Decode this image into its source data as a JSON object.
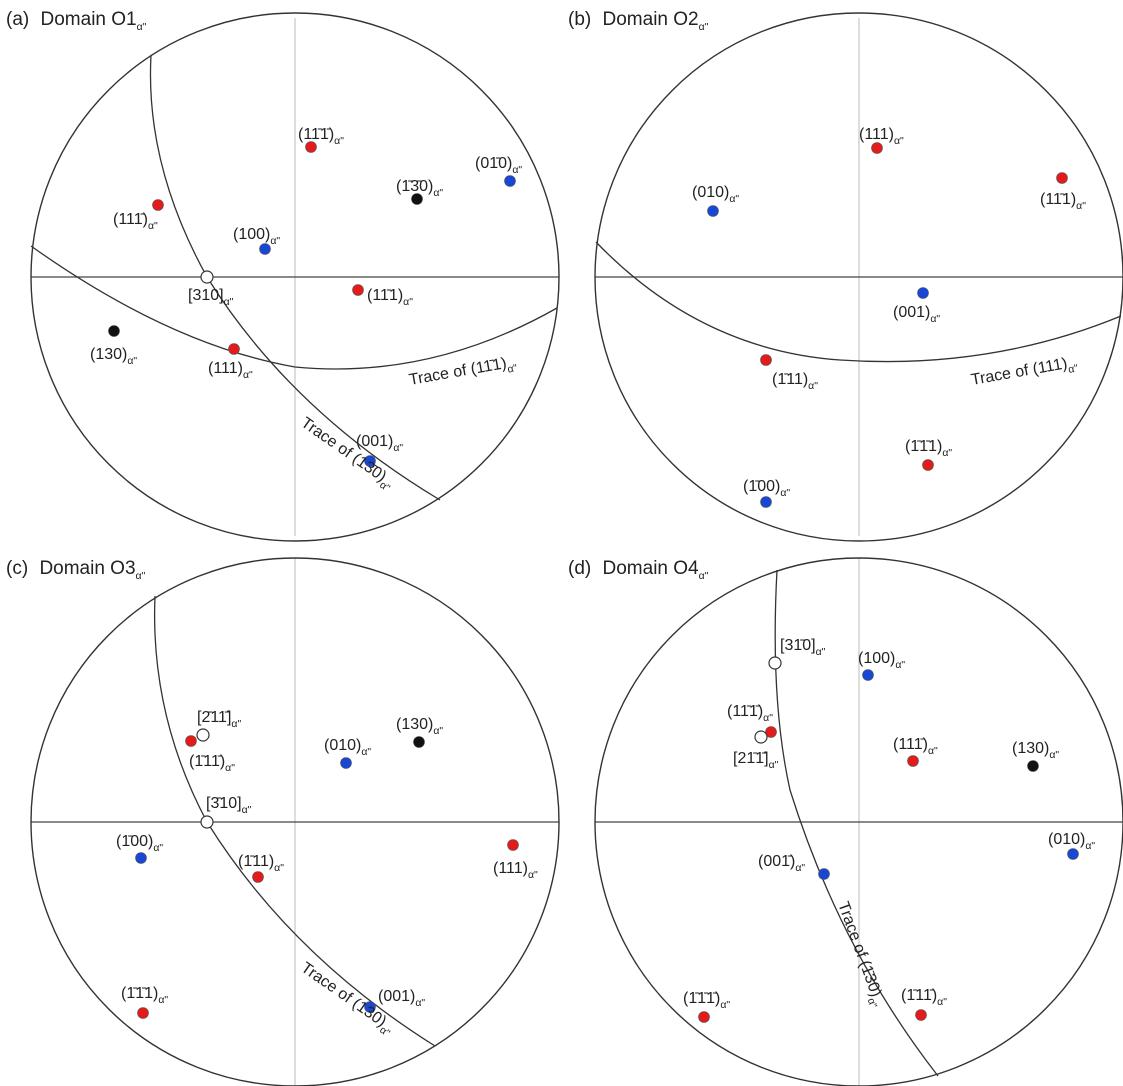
{
  "colors": {
    "red": "#e31b1b",
    "blue": "#1747d4",
    "black": "#111111",
    "open": "#ffffff",
    "circle": "#333333",
    "axis": "#bbbbbb",
    "line": "#333333"
  },
  "subscript": "α\"",
  "panels": [
    {
      "id": "a",
      "title": {
        "tag": "(a)",
        "text": "Domain O1"
      },
      "points": [
        {
          "hkl": "(11̄1̄)",
          "color": "red"
        },
        {
          "hkl": "(1̄3̄0)",
          "color": "black"
        },
        {
          "hkl": "(01̄0)",
          "color": "blue"
        },
        {
          "hkl": "(111̄)",
          "color": "red"
        },
        {
          "hkl": "(100)",
          "color": "blue"
        },
        {
          "hkl": "[310]",
          "color": "open"
        },
        {
          "hkl": "(11̄1)",
          "color": "red"
        },
        {
          "hkl": "(130)",
          "color": "black"
        },
        {
          "hkl": "(111)",
          "color": "red"
        },
        {
          "hkl": "(001)",
          "color": "blue"
        }
      ],
      "traces": [
        {
          "text": "Trace of (11̄1)"
        },
        {
          "text": "Trace of (13̄0)"
        }
      ]
    },
    {
      "id": "b",
      "title": {
        "tag": "(b)",
        "text": "Domain O2"
      },
      "points": [
        {
          "hkl": "(111)",
          "color": "red"
        },
        {
          "hkl": "(11̄1)",
          "color": "red"
        },
        {
          "hkl": "(010)",
          "color": "blue"
        },
        {
          "hkl": "(001)",
          "color": "blue"
        },
        {
          "hkl": "(1̄11)",
          "color": "red"
        },
        {
          "hkl": "(1̄1̄1)",
          "color": "red"
        },
        {
          "hkl": "(1̄00)",
          "color": "blue"
        }
      ],
      "traces": [
        {
          "text": "Trace of (111)"
        }
      ]
    },
    {
      "id": "c",
      "title": {
        "tag": "(c)",
        "text": "Domain O3"
      },
      "points": [
        {
          "hkl": "[2̄11̄]",
          "color": "open"
        },
        {
          "hkl": "(1̄11̄)",
          "color": "red"
        },
        {
          "hkl": "(010)",
          "color": "blue"
        },
        {
          "hkl": "(130)",
          "color": "black"
        },
        {
          "hkl": "[3̄10]",
          "color": "open"
        },
        {
          "hkl": "(1̄00)",
          "color": "blue"
        },
        {
          "hkl": "(1̄11)",
          "color": "red"
        },
        {
          "hkl": "(111)",
          "color": "red"
        },
        {
          "hkl": "(1̄1̄1)",
          "color": "red"
        },
        {
          "hkl": "(001)",
          "color": "blue"
        }
      ],
      "traces": [
        {
          "text": "Trace of (130)"
        }
      ]
    },
    {
      "id": "d",
      "title": {
        "tag": "(d)",
        "text": "Domain O4"
      },
      "points": [
        {
          "hkl": "[31̄0]",
          "color": "open"
        },
        {
          "hkl": "(100)",
          "color": "blue"
        },
        {
          "hkl": "(11̄1̄)",
          "color": "red"
        },
        {
          "hkl": "[21̄1̄]",
          "color": "open"
        },
        {
          "hkl": "(111̄)",
          "color": "red"
        },
        {
          "hkl": "(130)",
          "color": "black"
        },
        {
          "hkl": "(010)",
          "color": "blue"
        },
        {
          "hkl": "(001̄)",
          "color": "blue"
        },
        {
          "hkl": "(1̄1̄1̄)",
          "color": "red"
        },
        {
          "hkl": "(1̄11̄)",
          "color": "red"
        }
      ],
      "traces": [
        {
          "text": "Trace of (1̄30)"
        }
      ]
    }
  ]
}
